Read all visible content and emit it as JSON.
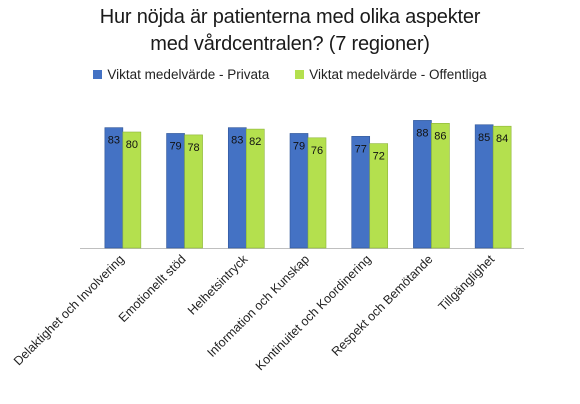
{
  "chart_data": {
    "type": "bar",
    "title_lines": [
      "Hur nöjda är patienterna med olika aspekter",
      "med vårdcentralen? (7 regioner)"
    ],
    "categories": [
      "Delaktighet och Involvering",
      "Emotionellt stöd",
      "Helhetsintryck",
      "Information och Kunskap",
      "Kontinuitet och Koordinering",
      "Respekt och Bemötande",
      "Tillgänglighet"
    ],
    "series": [
      {
        "name": "Viktat medelvärde - Privata",
        "color": "#4472C4",
        "values": [
          83,
          79,
          83,
          79,
          77,
          88,
          85
        ]
      },
      {
        "name": "Viktat medelvärde - Offentliga",
        "color": "#B4E04E",
        "values": [
          80,
          78,
          82,
          76,
          72,
          86,
          84
        ]
      }
    ],
    "ylim": [
      0,
      100
    ],
    "grid": false,
    "legend_position": "top-center"
  }
}
